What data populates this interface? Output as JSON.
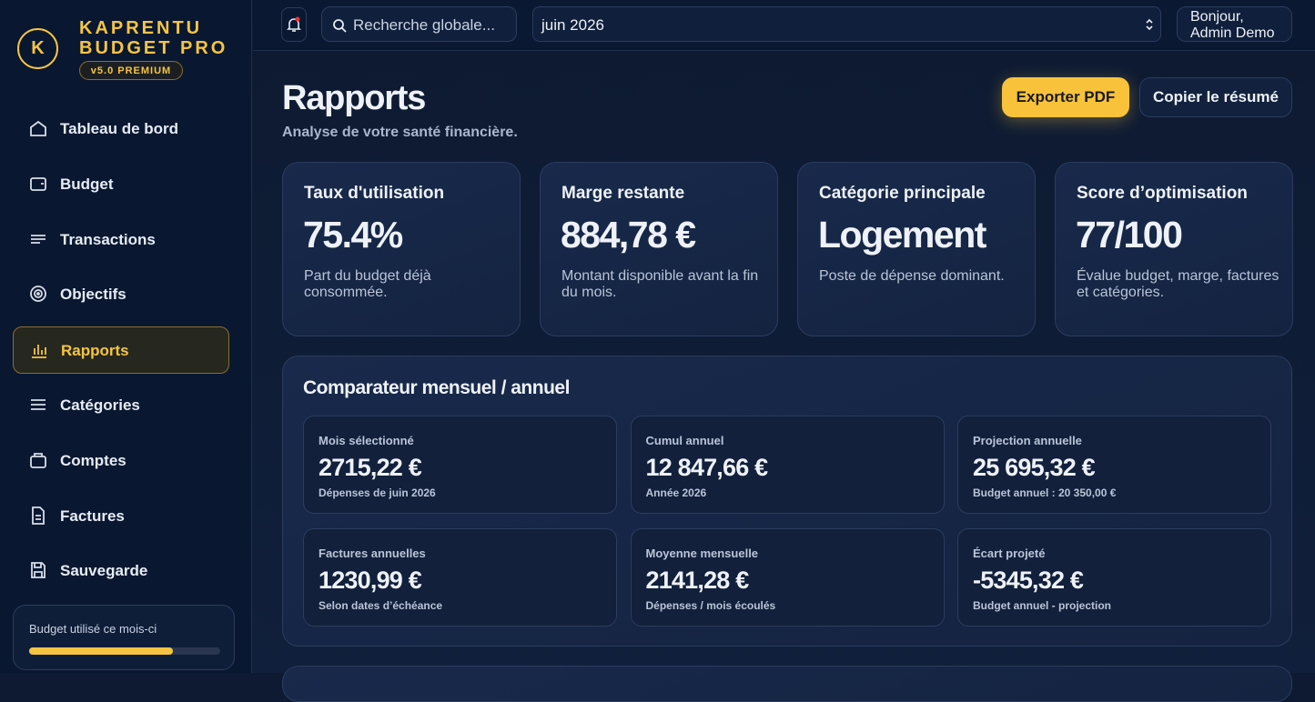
{
  "sidebar": {
    "brand": {
      "logo": "K",
      "name_line1": "KAPRENTU",
      "name_line2": "BUDGET PRO",
      "badge": "v5.0 PREMIUM"
    },
    "nav": [
      {
        "label": "Tableau de bord"
      },
      {
        "label": "Budget"
      },
      {
        "label": "Transactions"
      },
      {
        "label": "Objectifs"
      },
      {
        "label": "Rapports",
        "active": true
      },
      {
        "label": "Catégories"
      },
      {
        "label": "Comptes"
      },
      {
        "label": "Factures"
      },
      {
        "label": "Sauvegarde"
      }
    ],
    "budget_widget": {
      "label": "Budget utilisé ce mois-ci",
      "progress": 75
    }
  },
  "topbar": {
    "search_placeholder": "Recherche globale...",
    "month": "juin 2026",
    "greeting_line1": "Bonjour,",
    "greeting_line2": "Admin Demo"
  },
  "header": {
    "title": "Rapports",
    "subtitle": "Analyse de votre santé financière.",
    "buttons": [
      "Exporter PDF",
      "Copier le résumé"
    ]
  },
  "kpi_cards": [
    {
      "title": "Taux d'utilisation",
      "value": "75.4%",
      "description": "Part du budget déjà consommée."
    },
    {
      "title": "Marge restante",
      "value": "884,78 €",
      "description": "Montant disponible avant la fin du mois."
    },
    {
      "title": "Catégorie principale",
      "value": "Logement",
      "description": "Poste de dépense dominant."
    },
    {
      "title": "Score d’optimisation",
      "value": "77/100",
      "description": "Évalue budget, marge, factures et catégories."
    }
  ],
  "comparator": {
    "title": "Comparateur mensuel / annuel",
    "cards": [
      {
        "label": "Mois sélectionné",
        "value": "2715,22 €",
        "note": "Dépenses de juin 2026"
      },
      {
        "label": "Cumul annuel",
        "value": "12 847,66 €",
        "note": "Année 2026"
      },
      {
        "label": "Projection annuelle",
        "value": "25 695,32 €",
        "note": "Budget annuel : 20 350,00 €"
      },
      {
        "label": "Factures annuelles",
        "value": "1230,99 €",
        "note": "Selon dates d’échéance"
      },
      {
        "label": "Moyenne mensuelle",
        "value": "2141,28 €",
        "note": "Dépenses / mois écoulés"
      },
      {
        "label": "Écart projeté",
        "value": "-5345,32 €",
        "note": "Budget annuel - projection"
      }
    ]
  }
}
